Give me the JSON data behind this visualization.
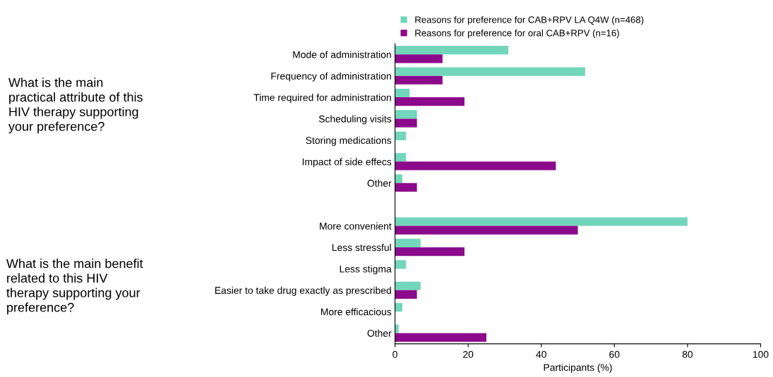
{
  "chart_data": {
    "type": "bar",
    "orientation": "horizontal",
    "xlabel": "Participants (%)",
    "categories": [
      "Mode of administration",
      "Frequency of administration",
      "Time required for administration",
      "Scheduling visits",
      "Storing medications",
      "Impact of side effecs",
      "Other",
      null,
      "More convenient",
      "Less stressful",
      "Less stigma",
      "Easier to take drug exactly as prescribed",
      "More efficacious",
      "Other"
    ],
    "series": [
      {
        "name": "Reasons for preference for CAB+RPV LA Q4W (n=468)",
        "color": "#72d6bb",
        "values": [
          31,
          52,
          4,
          6,
          3,
          3,
          2,
          null,
          80,
          7,
          3,
          7,
          2,
          1
        ]
      },
      {
        "name": "Reasons for preference for oral CAB+RPV (n=16)",
        "color": "#8b0a8b",
        "values": [
          13,
          13,
          19,
          6,
          0,
          44,
          6,
          null,
          50,
          19,
          0,
          6,
          0,
          25
        ]
      }
    ],
    "xlim": [
      0,
      100
    ],
    "xticks": [
      0,
      20,
      40,
      60,
      80,
      100
    ],
    "grid": false,
    "legend": "top left",
    "annotations": [
      "What is the main practical attribute of this HIV therapy supporting your preference?",
      "What is the main benefit related to this HIV therapy supporting your preference?"
    ]
  }
}
